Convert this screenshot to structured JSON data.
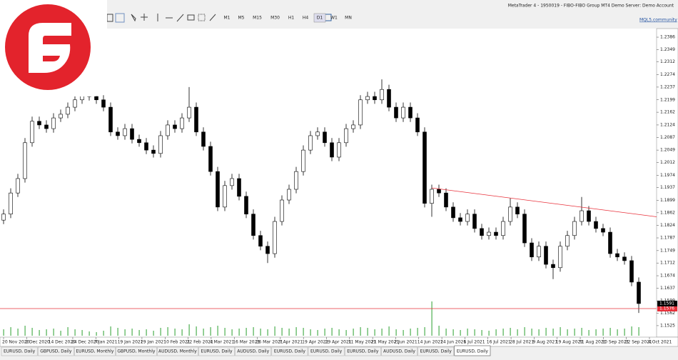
{
  "window": {
    "title": "MetaTrader 4 - 1950019 - FIBO-FIBO Group MT4 Demo Server: Demo Account",
    "timeframes": [
      "M1",
      "M5",
      "M15",
      "M30",
      "H1",
      "H4",
      "D1",
      "W1",
      "MN"
    ],
    "active_timeframe": 6,
    "link": "MQL5.community",
    "tabs": [
      "EURUSD, Daily",
      "GBPUSD, Daily",
      "EURUSD, Monthly",
      "GBPUSD, Monthly",
      "AUDUSD, Monthly",
      "EURUSD, Daily",
      "AUDUSD, Daily",
      "EURUSD, Daily",
      "EURUSD, Daily",
      "EURUSD, Daily",
      "AUDUSD, Daily",
      "EURUSD, Daily",
      "EURUSD, Daily"
    ],
    "active_tab": 12
  },
  "chart_data": {
    "type": "candlestick",
    "ylim": [
      1.1495,
      1.2401
    ],
    "yticks": [
      1.2386,
      1.2349,
      1.2312,
      1.2274,
      1.2237,
      1.2199,
      1.2162,
      1.2124,
      1.2087,
      1.2049,
      1.2012,
      1.1974,
      1.1937,
      1.1899,
      1.1862,
      1.1824,
      1.1787,
      1.1749,
      1.1712,
      1.1674,
      1.1637,
      1.1599,
      1.1562,
      1.1525
    ],
    "date_labels": [
      "20 Nov 2020",
      "2 Dec 2020",
      "14 Dec 2020",
      "24 Dec 2020",
      "7 Jan 2021",
      "19 Jan 2021",
      "29 Jan 2021",
      "10 Feb 2021",
      "22 Feb 2021",
      "4 Mar 2021",
      "16 Mar 2021",
      "26 Mar 2021",
      "7 Apr 2021",
      "19 Apr 2021",
      "29 Apr 2021",
      "11 May 2021",
      "21 May 2021",
      "2 Jun 2021",
      "14 Jun 2021",
      "24 Jun 2021",
      "6 Jul 2021",
      "16 Jul 2021",
      "28 Jul 2021",
      "9 Aug 2021",
      "19 Aug 2021",
      "31 Aug 2021",
      "10 Sep 2021",
      "22 Sep 2021",
      "4 Oct 2021"
    ],
    "candles": [
      [
        1.184,
        1.1872,
        1.1828,
        1.1858
      ],
      [
        1.1858,
        1.1935,
        1.1846,
        1.1921
      ],
      [
        1.1921,
        1.1978,
        1.1909,
        1.1964
      ],
      [
        1.1964,
        1.2085,
        1.1952,
        1.2071
      ],
      [
        1.2071,
        1.2149,
        1.2059,
        1.2135
      ],
      [
        1.2135,
        1.2149,
        1.2112,
        1.2124
      ],
      [
        1.2124,
        1.2138,
        1.2101,
        1.2113
      ],
      [
        1.2113,
        1.2159,
        1.2101,
        1.2145
      ],
      [
        1.2145,
        1.217,
        1.2133,
        1.2156
      ],
      [
        1.2156,
        1.2191,
        1.2144,
        1.2177
      ],
      [
        1.2177,
        1.2213,
        1.2165,
        1.2199
      ],
      [
        1.2199,
        1.2234,
        1.2187,
        1.222
      ],
      [
        1.222,
        1.2234,
        1.2197,
        1.2209
      ],
      [
        1.2209,
        1.2223,
        1.2187,
        1.2199
      ],
      [
        1.2199,
        1.2213,
        1.2165,
        1.2177
      ],
      [
        1.2177,
        1.2191,
        1.2091,
        1.2103
      ],
      [
        1.2103,
        1.2117,
        1.208,
        1.2092
      ],
      [
        1.2092,
        1.2127,
        1.208,
        1.2113
      ],
      [
        1.2113,
        1.2127,
        1.2069,
        1.2081
      ],
      [
        1.2081,
        1.2095,
        1.2059,
        1.2071
      ],
      [
        1.2071,
        1.2085,
        1.2037,
        1.2049
      ],
      [
        1.2049,
        1.2063,
        1.2027,
        1.2039
      ],
      [
        1.2039,
        1.2106,
        1.2027,
        1.2092
      ],
      [
        1.2092,
        1.2138,
        1.208,
        1.2124
      ],
      [
        1.2124,
        1.2138,
        1.2101,
        1.2113
      ],
      [
        1.2113,
        1.2159,
        1.2101,
        1.2145
      ],
      [
        1.2145,
        1.2237,
        1.2133,
        1.2177
      ],
      [
        1.2177,
        1.2191,
        1.2091,
        1.2103
      ],
      [
        1.2103,
        1.2117,
        1.2048,
        1.206
      ],
      [
        1.206,
        1.2074,
        1.1973,
        1.1985
      ],
      [
        1.1985,
        1.1999,
        1.1867,
        1.1879
      ],
      [
        1.1879,
        1.1957,
        1.1867,
        1.1943
      ],
      [
        1.1943,
        1.1978,
        1.1931,
        1.1964
      ],
      [
        1.1964,
        1.1978,
        1.1899,
        1.1911
      ],
      [
        1.1911,
        1.1925,
        1.1846,
        1.1858
      ],
      [
        1.1858,
        1.1872,
        1.1782,
        1.1794
      ],
      [
        1.1794,
        1.1808,
        1.175,
        1.1762
      ],
      [
        1.1762,
        1.1776,
        1.1712,
        1.174
      ],
      [
        1.174,
        1.185,
        1.1728,
        1.1836
      ],
      [
        1.1836,
        1.1914,
        1.1824,
        1.19
      ],
      [
        1.19,
        1.1946,
        1.1888,
        1.1932
      ],
      [
        1.1932,
        1.1999,
        1.192,
        1.1985
      ],
      [
        1.1985,
        1.2063,
        1.1973,
        1.2049
      ],
      [
        1.2049,
        1.2106,
        1.2037,
        1.2092
      ],
      [
        1.2092,
        1.2117,
        1.208,
        1.2103
      ],
      [
        1.2103,
        1.2117,
        1.2059,
        1.2071
      ],
      [
        1.2071,
        1.2085,
        1.2016,
        1.2028
      ],
      [
        1.2028,
        1.2085,
        1.2016,
        1.2071
      ],
      [
        1.2071,
        1.2127,
        1.2059,
        1.2113
      ],
      [
        1.2113,
        1.2138,
        1.2101,
        1.2124
      ],
      [
        1.2124,
        1.2213,
        1.2112,
        1.2199
      ],
      [
        1.2199,
        1.2223,
        1.2187,
        1.2209
      ],
      [
        1.2209,
        1.2223,
        1.2187,
        1.2199
      ],
      [
        1.2199,
        1.226,
        1.2187,
        1.223
      ],
      [
        1.223,
        1.2244,
        1.2165,
        1.2177
      ],
      [
        1.2177,
        1.2191,
        1.2133,
        1.2145
      ],
      [
        1.2145,
        1.2191,
        1.2133,
        1.2177
      ],
      [
        1.2177,
        1.2191,
        1.2133,
        1.2145
      ],
      [
        1.2145,
        1.2159,
        1.2091,
        1.2103
      ],
      [
        1.2103,
        1.2117,
        1.1878,
        1.189
      ],
      [
        1.189,
        1.1946,
        1.185,
        1.1932
      ],
      [
        1.1932,
        1.1946,
        1.1909,
        1.1921
      ],
      [
        1.1921,
        1.1935,
        1.1867,
        1.1879
      ],
      [
        1.1879,
        1.1893,
        1.1835,
        1.1847
      ],
      [
        1.1847,
        1.1861,
        1.1824,
        1.1836
      ],
      [
        1.1836,
        1.1872,
        1.1824,
        1.1858
      ],
      [
        1.1858,
        1.1872,
        1.1803,
        1.1815
      ],
      [
        1.1815,
        1.1829,
        1.1782,
        1.1794
      ],
      [
        1.1794,
        1.1818,
        1.1782,
        1.1804
      ],
      [
        1.1804,
        1.1818,
        1.1782,
        1.1794
      ],
      [
        1.1794,
        1.185,
        1.1782,
        1.1836
      ],
      [
        1.1836,
        1.1905,
        1.1824,
        1.1879
      ],
      [
        1.1879,
        1.1893,
        1.1846,
        1.1858
      ],
      [
        1.1858,
        1.1872,
        1.176,
        1.1772
      ],
      [
        1.1772,
        1.1786,
        1.1718,
        1.173
      ],
      [
        1.173,
        1.1776,
        1.1718,
        1.1762
      ],
      [
        1.1762,
        1.1776,
        1.1696,
        1.1708
      ],
      [
        1.1708,
        1.1722,
        1.1664,
        1.1698
      ],
      [
        1.1698,
        1.1776,
        1.1686,
        1.1762
      ],
      [
        1.1762,
        1.1808,
        1.175,
        1.1794
      ],
      [
        1.1794,
        1.185,
        1.1782,
        1.1836
      ],
      [
        1.1836,
        1.1909,
        1.1824,
        1.1868
      ],
      [
        1.1868,
        1.1882,
        1.1824,
        1.1836
      ],
      [
        1.1836,
        1.185,
        1.1803,
        1.1815
      ],
      [
        1.1815,
        1.1829,
        1.1792,
        1.1804
      ],
      [
        1.1804,
        1.1818,
        1.1728,
        1.174
      ],
      [
        1.174,
        1.1754,
        1.1718,
        1.173
      ],
      [
        1.173,
        1.1744,
        1.1707,
        1.1719
      ],
      [
        1.1719,
        1.1733,
        1.1643,
        1.1655
      ],
      [
        1.1655,
        1.1669,
        1.1563,
        1.1591
      ]
    ],
    "volumes": [
      9,
      12,
      10,
      14,
      11,
      8,
      9,
      10,
      7,
      12,
      9,
      8,
      6,
      5,
      7,
      13,
      11,
      9,
      10,
      8,
      9,
      7,
      11,
      12,
      10,
      9,
      16,
      13,
      10,
      12,
      14,
      11,
      9,
      10,
      11,
      12,
      10,
      9,
      13,
      11,
      10,
      12,
      11,
      9,
      8,
      10,
      11,
      9,
      8,
      10,
      12,
      11,
      9,
      10,
      13,
      9,
      8,
      10,
      11,
      12,
      48,
      14,
      10,
      9,
      8,
      10,
      9,
      8,
      7,
      9,
      10,
      11,
      9,
      12,
      10,
      9,
      11,
      10,
      12,
      9,
      10,
      11,
      8,
      9,
      10,
      11,
      9,
      10,
      13,
      12
    ],
    "trendline": {
      "start": 1.1936,
      "end": 1.185,
      "color": "#e8303a"
    },
    "hline": {
      "value": 1.1576,
      "color": "#e8303a"
    },
    "bull_color": "#ffffff",
    "bear_color": "#000000",
    "volume_color": "#4caf50"
  }
}
